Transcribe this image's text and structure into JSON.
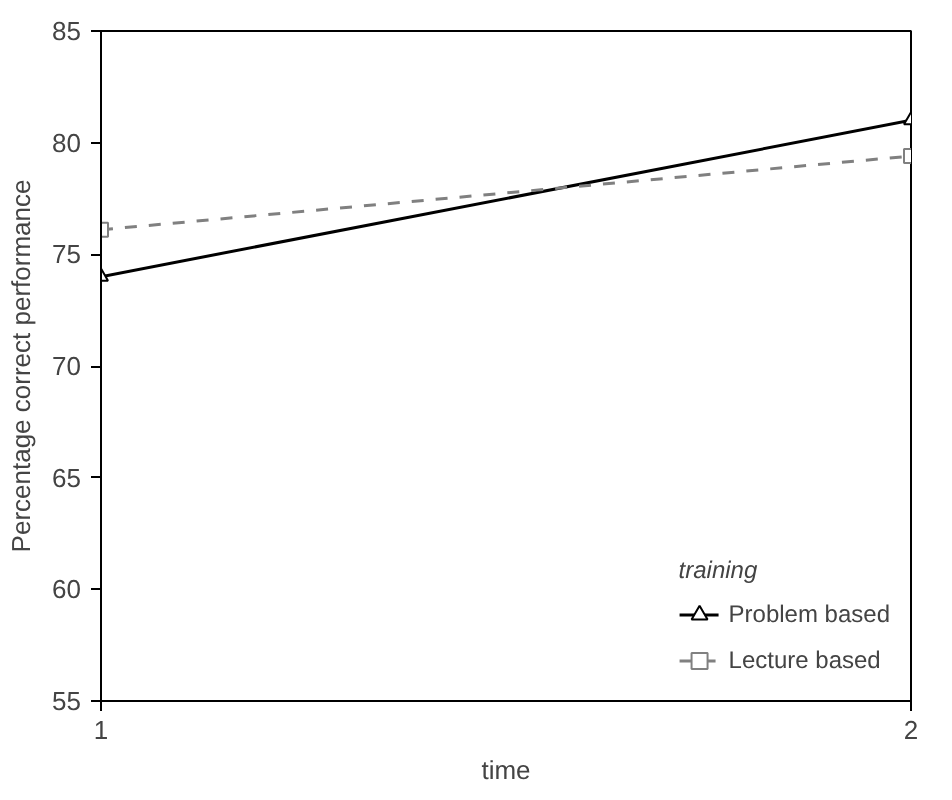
{
  "chart_data": {
    "type": "line",
    "xlabel": "time",
    "ylabel": "Percentage correct performance",
    "legend_title": "training",
    "x": [
      1,
      2
    ],
    "xlim": [
      1,
      2
    ],
    "xticks": [
      1,
      2
    ],
    "ylim": [
      55,
      85
    ],
    "yticks": [
      55,
      60,
      65,
      70,
      75,
      80,
      85
    ],
    "grid": false,
    "legend": "bottom right",
    "series": [
      {
        "name": "Problem based",
        "color": "#000000",
        "values": [
          74,
          81
        ],
        "marker": "triangle",
        "line_style": "solid"
      },
      {
        "name": "Lecture based",
        "color": "#808080",
        "values": [
          76.1,
          79.4
        ],
        "marker": "square",
        "line_style": "dashed"
      }
    ]
  }
}
